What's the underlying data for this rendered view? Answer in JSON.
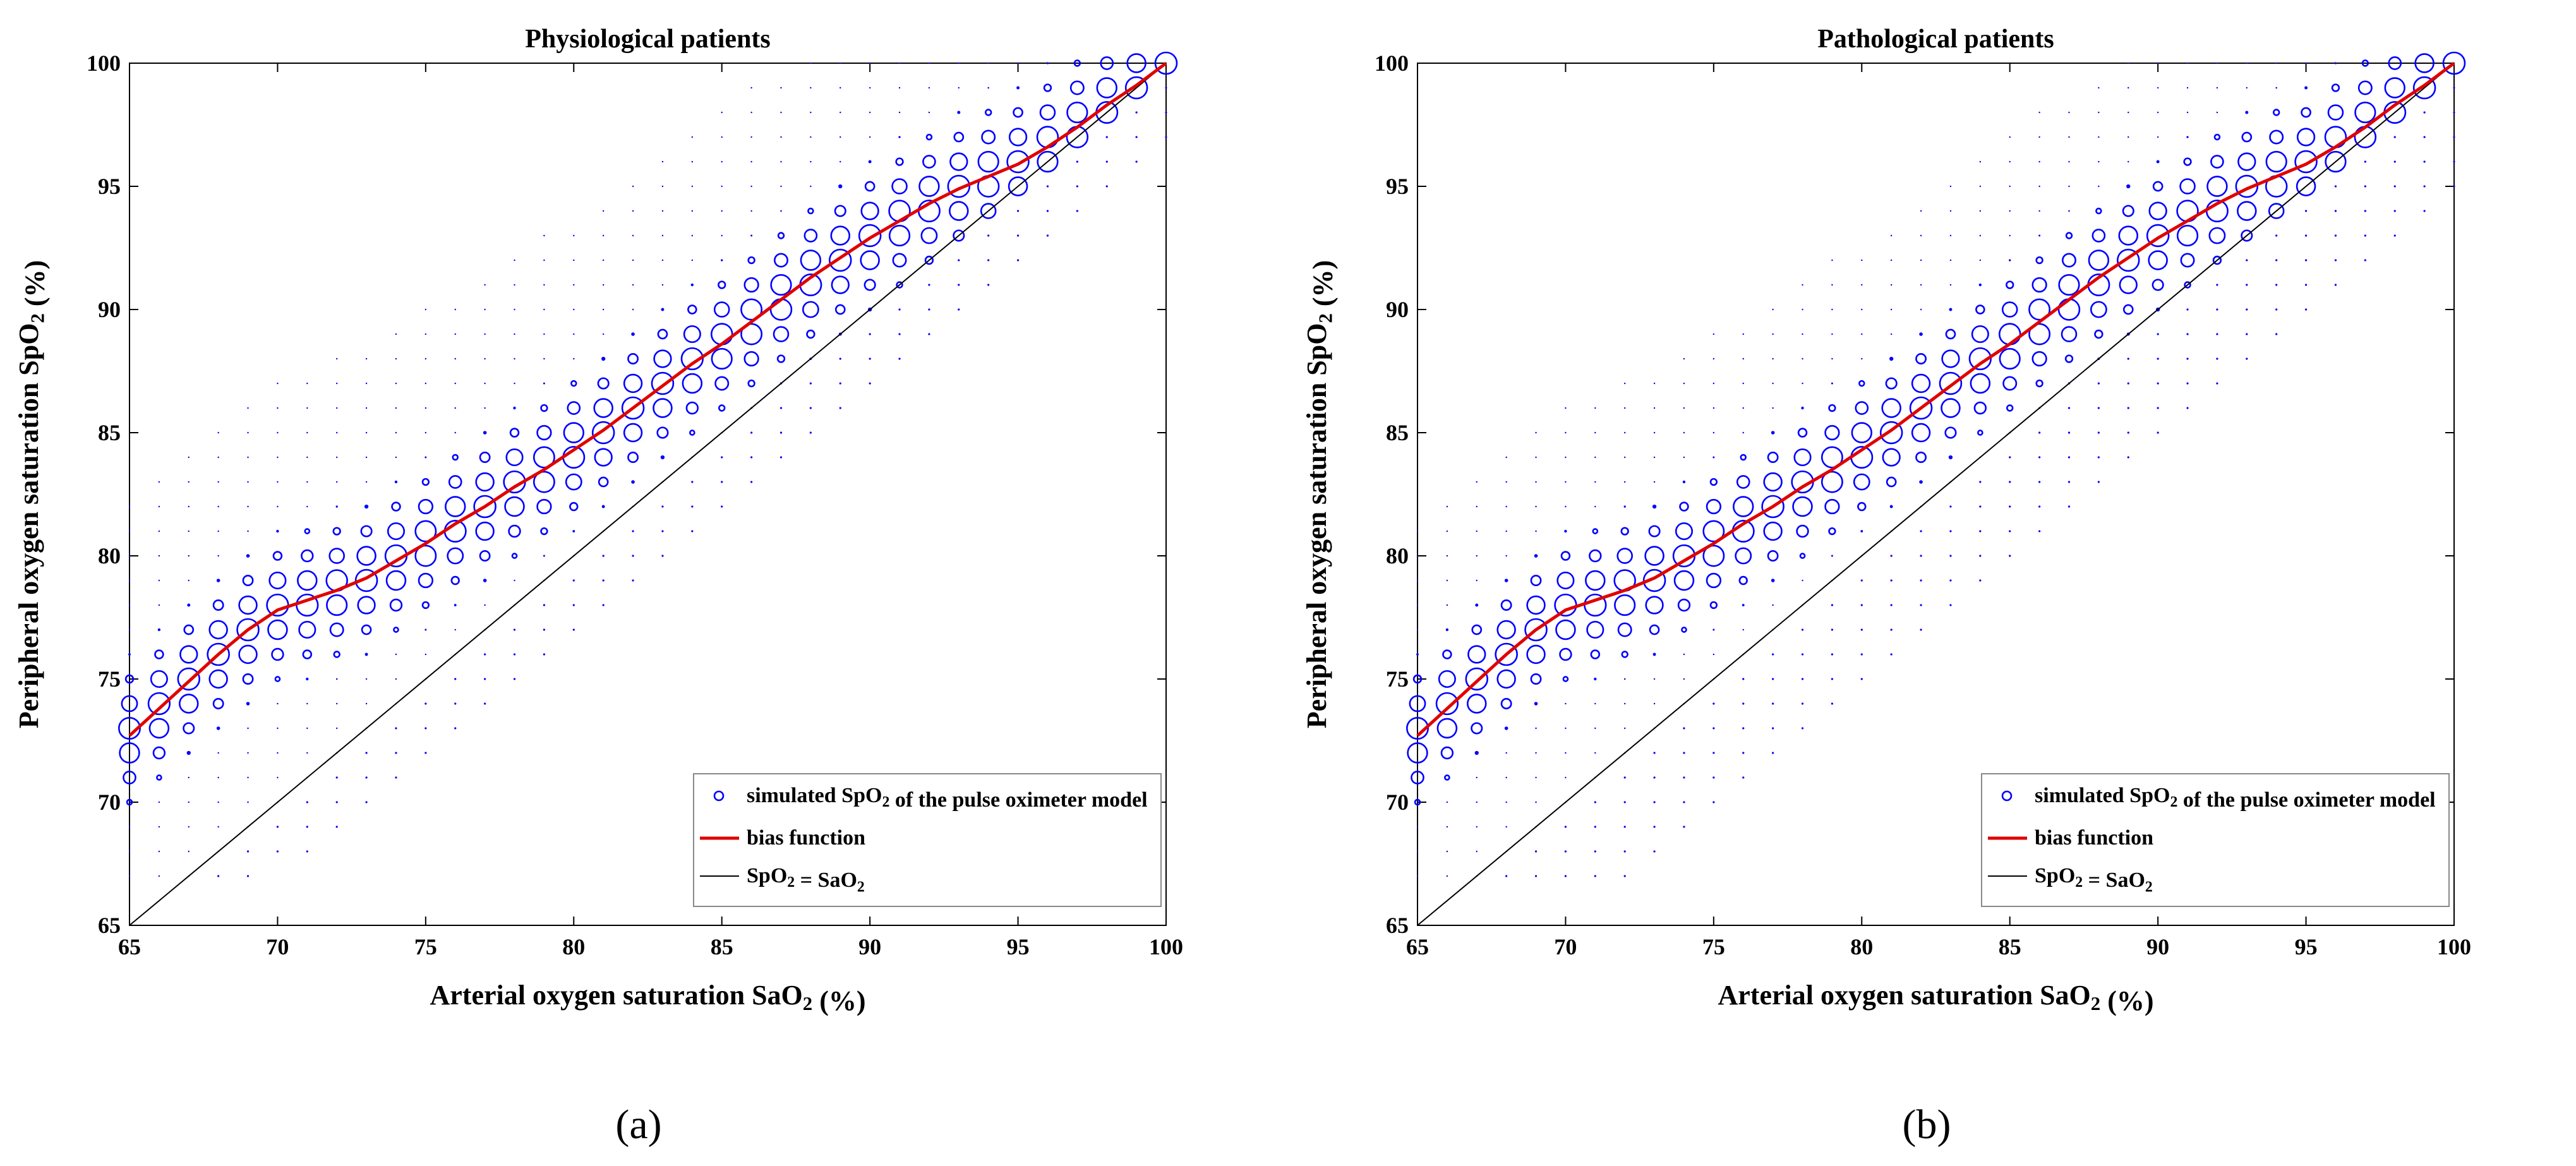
{
  "page": {
    "background": "#ffffff"
  },
  "chart_data": [
    {
      "type": "scatter",
      "panel_label": "(a)",
      "title": "Physiological patients",
      "xlabel": "Arterial oxygen saturation SaO₂ (%)",
      "ylabel": "Peripheral oxygen saturation SpO₂ (%)",
      "xlim": [
        65,
        100
      ],
      "ylim": [
        65,
        100
      ],
      "xticks": [
        "65",
        "70",
        "75",
        "80",
        "85",
        "90",
        "95",
        "100"
      ],
      "yticks": [
        "65",
        "70",
        "75",
        "80",
        "85",
        "90",
        "95",
        "100"
      ],
      "legend_position": "bottom-right",
      "series": [
        {
          "name": "simulated SpO₂ of the pulse oximeter model",
          "kind": "bubble-grid",
          "color": "#0000ff",
          "x_range": [
            65,
            100
          ],
          "y_step": 1,
          "spread_above": 9,
          "spread_below": 3,
          "min_y": 67,
          "note": "marker size proportional to frequency; largest markers near the bias function"
        },
        {
          "name": "bias function",
          "kind": "line",
          "color": "#e00000",
          "x": [
            65,
            66,
            67,
            68,
            69,
            70,
            71,
            72,
            73,
            74,
            75,
            76,
            77,
            78,
            79,
            80,
            81,
            82,
            83,
            84,
            85,
            86,
            87,
            88,
            89,
            90,
            91,
            92,
            93,
            94,
            95,
            96,
            97,
            98,
            99,
            100
          ],
          "y": [
            72.7,
            73.8,
            74.9,
            76.0,
            77.0,
            77.8,
            78.2,
            78.6,
            79.1,
            79.8,
            80.5,
            81.3,
            82.0,
            82.8,
            83.5,
            84.3,
            85.1,
            86.0,
            86.9,
            87.8,
            88.6,
            89.5,
            90.4,
            91.3,
            92.1,
            92.9,
            93.6,
            94.3,
            94.9,
            95.4,
            95.9,
            96.6,
            97.4,
            98.3,
            99.1,
            100.0
          ]
        },
        {
          "name": "SpO₂ = SaO₂",
          "kind": "line",
          "color": "#000000",
          "x": [
            65,
            100
          ],
          "y": [
            65,
            100
          ]
        }
      ]
    },
    {
      "type": "scatter",
      "panel_label": "(b)",
      "title": "Pathological patients",
      "xlabel": "Arterial oxygen saturation SaO₂ (%)",
      "ylabel": "Peripheral oxygen saturation SpO₂ (%)",
      "xlim": [
        65,
        100
      ],
      "ylim": [
        65,
        100
      ],
      "xticks": [
        "65",
        "70",
        "75",
        "80",
        "85",
        "90",
        "95",
        "100"
      ],
      "yticks": [
        "65",
        "70",
        "75",
        "80",
        "85",
        "90",
        "95",
        "100"
      ],
      "legend_position": "bottom-right",
      "series": [
        {
          "name": "simulated SpO₂ of the pulse oximeter model",
          "kind": "bubble-grid",
          "color": "#0000ff",
          "x_range": [
            65,
            100
          ],
          "y_step": 1,
          "spread_above": 8,
          "spread_below": 5,
          "min_y": 67,
          "note": "marker size proportional to frequency; more uniform spread than physiological panel"
        },
        {
          "name": "bias function",
          "kind": "line",
          "color": "#e00000",
          "x": [
            65,
            66,
            67,
            68,
            69,
            70,
            71,
            72,
            73,
            74,
            75,
            76,
            77,
            78,
            79,
            80,
            81,
            82,
            83,
            84,
            85,
            86,
            87,
            88,
            89,
            90,
            91,
            92,
            93,
            94,
            95,
            96,
            97,
            98,
            99,
            100
          ],
          "y": [
            72.7,
            73.8,
            74.9,
            76.0,
            77.0,
            77.8,
            78.2,
            78.6,
            79.1,
            79.8,
            80.5,
            81.3,
            82.0,
            82.8,
            83.5,
            84.3,
            85.1,
            86.0,
            86.9,
            87.8,
            88.6,
            89.5,
            90.4,
            91.3,
            92.1,
            92.9,
            93.6,
            94.3,
            94.9,
            95.4,
            95.9,
            96.6,
            97.4,
            98.3,
            99.1,
            100.0
          ]
        },
        {
          "name": "SpO₂ = SaO₂",
          "kind": "line",
          "color": "#000000",
          "x": [
            65,
            100
          ],
          "y": [
            65,
            100
          ]
        }
      ]
    }
  ]
}
